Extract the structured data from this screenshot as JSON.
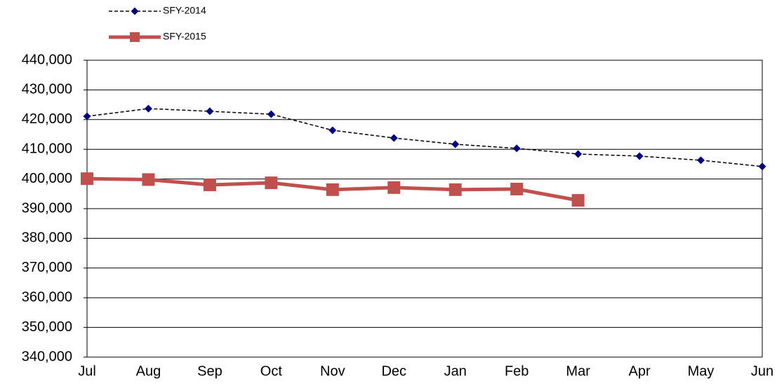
{
  "chart_data": {
    "type": "line",
    "categories": [
      "Jul",
      "Aug",
      "Sep",
      "Oct",
      "Nov",
      "Dec",
      "Jan",
      "Feb",
      "Mar",
      "Apr",
      "May",
      "Jun"
    ],
    "series": [
      {
        "name": "SFY-2014",
        "color": "#000080",
        "line_color": "#000000",
        "line_style": "dashed",
        "marker": "diamond",
        "values": [
          421100,
          423700,
          422800,
          421800,
          416400,
          413800,
          411700,
          410300,
          408400,
          407700,
          406300,
          404200
        ]
      },
      {
        "name": "SFY-2015",
        "color": "#c0504d",
        "line_color": "#c0504d",
        "line_style": "solid",
        "marker": "square",
        "values": [
          400100,
          399800,
          398000,
          398700,
          396400,
          397100,
          396400,
          396600,
          392800,
          null,
          null,
          null
        ]
      }
    ],
    "ylim": [
      340000,
      440000
    ],
    "yticks": [
      {
        "value": 340000,
        "label": "340,000"
      },
      {
        "value": 350000,
        "label": "350,000"
      },
      {
        "value": 360000,
        "label": "360,000"
      },
      {
        "value": 370000,
        "label": "370,000"
      },
      {
        "value": 380000,
        "label": "380,000"
      },
      {
        "value": 390000,
        "label": "390,000"
      },
      {
        "value": 400000,
        "label": "400,000"
      },
      {
        "value": 410000,
        "label": "410,000"
      },
      {
        "value": 420000,
        "label": "420,000"
      },
      {
        "value": 430000,
        "label": "430,000"
      },
      {
        "value": 440000,
        "label": "440,000"
      }
    ],
    "grid": true,
    "legend": "top-left"
  }
}
